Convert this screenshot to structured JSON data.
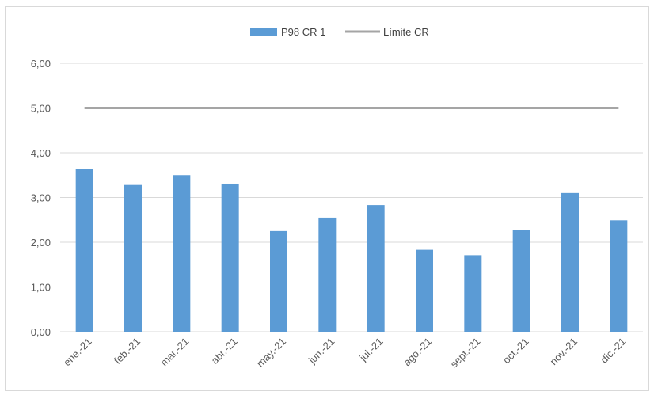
{
  "chart_data": {
    "type": "bar",
    "categories": [
      "ene.-21",
      "feb.-21",
      "mar.-21",
      "abr.-21",
      "may.-21",
      "jun.-21",
      "jul.-21",
      "ago.-21",
      "sept.-21",
      "oct.-21",
      "nov.-21",
      "dic.-21"
    ],
    "series": [
      {
        "name": "P98 CR 1",
        "type": "bar",
        "color": "#5b9bd5",
        "values": [
          3.64,
          3.28,
          3.5,
          3.31,
          2.25,
          2.55,
          2.83,
          1.83,
          1.71,
          2.28,
          3.1,
          2.49
        ]
      },
      {
        "name": "Límite CR",
        "type": "line",
        "color": "#a5a5a5",
        "values": [
          5,
          5,
          5,
          5,
          5,
          5,
          5,
          5,
          5,
          5,
          5,
          5
        ]
      }
    ],
    "y_ticks": [
      "0,00",
      "1,00",
      "2,00",
      "3,00",
      "4,00",
      "5,00",
      "6,00"
    ],
    "ylim": [
      0,
      6
    ],
    "grid": true,
    "legend_position": "top-center",
    "gridline_color": "#d9d9d9"
  }
}
